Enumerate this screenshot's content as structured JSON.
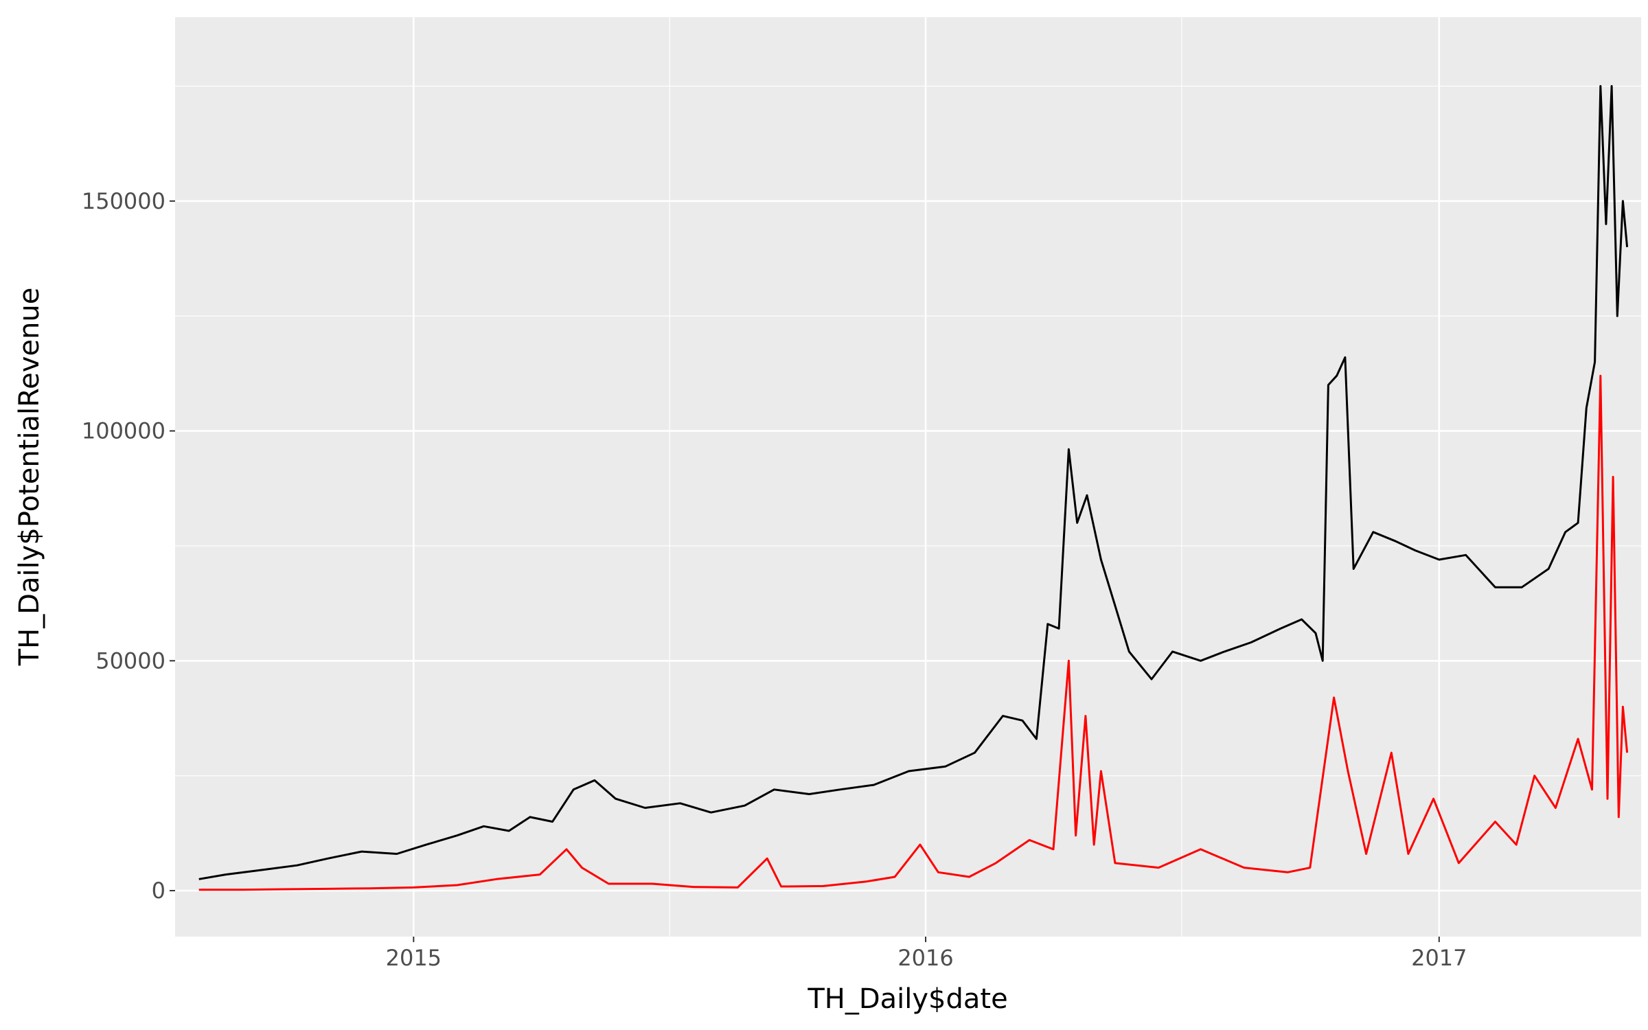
{
  "chart_data": {
    "type": "line",
    "title": "",
    "xlabel": "TH_Daily$date",
    "ylabel": "TH_Daily$PotentialRevenue",
    "x_range": [
      "2014-07-15",
      "2017-05-25"
    ],
    "ylim": [
      -10000,
      190000
    ],
    "x_ticks": [
      {
        "date": "2015-01-01",
        "label": "2015"
      },
      {
        "date": "2016-01-01",
        "label": "2016"
      },
      {
        "date": "2017-01-01",
        "label": "2017"
      }
    ],
    "y_ticks": [
      {
        "value": 0,
        "label": "0"
      },
      {
        "value": 50000,
        "label": "50000"
      },
      {
        "value": 100000,
        "label": "100000"
      },
      {
        "value": 150000,
        "label": "150000"
      }
    ],
    "grid": true,
    "background": "#ebebeb",
    "series": [
      {
        "color": "#000000",
        "points": [
          [
            "2014-08-01",
            2500
          ],
          [
            "2014-08-20",
            3500
          ],
          [
            "2014-09-15",
            4500
          ],
          [
            "2014-10-10",
            5500
          ],
          [
            "2014-11-01",
            7000
          ],
          [
            "2014-11-25",
            8500
          ],
          [
            "2014-12-20",
            8000
          ],
          [
            "2015-01-10",
            10000
          ],
          [
            "2015-02-01",
            12000
          ],
          [
            "2015-02-20",
            14000
          ],
          [
            "2015-03-10",
            13000
          ],
          [
            "2015-03-25",
            16000
          ],
          [
            "2015-04-10",
            15000
          ],
          [
            "2015-04-25",
            22000
          ],
          [
            "2015-05-10",
            24000
          ],
          [
            "2015-05-25",
            20000
          ],
          [
            "2015-06-15",
            18000
          ],
          [
            "2015-07-10",
            19000
          ],
          [
            "2015-08-01",
            17000
          ],
          [
            "2015-08-25",
            18500
          ],
          [
            "2015-09-15",
            22000
          ],
          [
            "2015-10-10",
            21000
          ],
          [
            "2015-11-01",
            22000
          ],
          [
            "2015-11-25",
            23000
          ],
          [
            "2015-12-20",
            26000
          ],
          [
            "2016-01-15",
            27000
          ],
          [
            "2016-02-05",
            30000
          ],
          [
            "2016-02-25",
            38000
          ],
          [
            "2016-03-10",
            37000
          ],
          [
            "2016-03-20",
            33000
          ],
          [
            "2016-03-28",
            58000
          ],
          [
            "2016-04-05",
            57000
          ],
          [
            "2016-04-12",
            96000
          ],
          [
            "2016-04-18",
            80000
          ],
          [
            "2016-04-25",
            86000
          ],
          [
            "2016-05-05",
            72000
          ],
          [
            "2016-05-15",
            62000
          ],
          [
            "2016-05-25",
            52000
          ],
          [
            "2016-06-10",
            46000
          ],
          [
            "2016-06-25",
            52000
          ],
          [
            "2016-07-15",
            50000
          ],
          [
            "2016-08-01",
            52000
          ],
          [
            "2016-08-20",
            54000
          ],
          [
            "2016-09-10",
            57000
          ],
          [
            "2016-09-25",
            59000
          ],
          [
            "2016-10-05",
            56000
          ],
          [
            "2016-10-10",
            50000
          ],
          [
            "2016-10-14",
            110000
          ],
          [
            "2016-10-20",
            112000
          ],
          [
            "2016-10-26",
            116000
          ],
          [
            "2016-11-01",
            70000
          ],
          [
            "2016-11-15",
            78000
          ],
          [
            "2016-12-01",
            76000
          ],
          [
            "2016-12-15",
            74000
          ],
          [
            "2017-01-01",
            72000
          ],
          [
            "2017-01-20",
            73000
          ],
          [
            "2017-02-10",
            66000
          ],
          [
            "2017-03-01",
            66000
          ],
          [
            "2017-03-20",
            70000
          ],
          [
            "2017-04-01",
            78000
          ],
          [
            "2017-04-10",
            80000
          ],
          [
            "2017-04-16",
            105000
          ],
          [
            "2017-04-22",
            115000
          ],
          [
            "2017-04-26",
            175000
          ],
          [
            "2017-04-30",
            145000
          ],
          [
            "2017-05-04",
            175000
          ],
          [
            "2017-05-08",
            125000
          ],
          [
            "2017-05-12",
            150000
          ],
          [
            "2017-05-15",
            140000
          ]
        ]
      },
      {
        "color": "#ff0000",
        "points": [
          [
            "2014-08-01",
            200
          ],
          [
            "2014-09-01",
            200
          ],
          [
            "2014-10-01",
            300
          ],
          [
            "2014-11-01",
            400
          ],
          [
            "2014-12-01",
            500
          ],
          [
            "2015-01-01",
            700
          ],
          [
            "2015-02-01",
            1200
          ],
          [
            "2015-03-01",
            2500
          ],
          [
            "2015-04-01",
            3500
          ],
          [
            "2015-04-20",
            9000
          ],
          [
            "2015-05-01",
            5000
          ],
          [
            "2015-05-20",
            1500
          ],
          [
            "2015-06-20",
            1500
          ],
          [
            "2015-07-20",
            800
          ],
          [
            "2015-08-20",
            700
          ],
          [
            "2015-09-10",
            7000
          ],
          [
            "2015-09-20",
            900
          ],
          [
            "2015-10-20",
            1000
          ],
          [
            "2015-11-20",
            2000
          ],
          [
            "2015-12-10",
            3000
          ],
          [
            "2015-12-28",
            10000
          ],
          [
            "2016-01-10",
            4000
          ],
          [
            "2016-02-01",
            3000
          ],
          [
            "2016-02-20",
            6000
          ],
          [
            "2016-03-15",
            11000
          ],
          [
            "2016-04-01",
            9000
          ],
          [
            "2016-04-12",
            50000
          ],
          [
            "2016-04-17",
            12000
          ],
          [
            "2016-04-24",
            38000
          ],
          [
            "2016-04-30",
            10000
          ],
          [
            "2016-05-05",
            26000
          ],
          [
            "2016-05-15",
            6000
          ],
          [
            "2016-06-15",
            5000
          ],
          [
            "2016-07-15",
            9000
          ],
          [
            "2016-08-15",
            5000
          ],
          [
            "2016-09-15",
            4000
          ],
          [
            "2016-10-01",
            5000
          ],
          [
            "2016-10-18",
            42000
          ],
          [
            "2016-10-28",
            26000
          ],
          [
            "2016-11-10",
            8000
          ],
          [
            "2016-11-28",
            30000
          ],
          [
            "2016-12-10",
            8000
          ],
          [
            "2016-12-28",
            20000
          ],
          [
            "2017-01-15",
            6000
          ],
          [
            "2017-02-10",
            15000
          ],
          [
            "2017-02-25",
            10000
          ],
          [
            "2017-03-10",
            25000
          ],
          [
            "2017-03-25",
            18000
          ],
          [
            "2017-04-10",
            33000
          ],
          [
            "2017-04-20",
            22000
          ],
          [
            "2017-04-26",
            112000
          ],
          [
            "2017-05-01",
            20000
          ],
          [
            "2017-05-05",
            90000
          ],
          [
            "2017-05-09",
            16000
          ],
          [
            "2017-05-12",
            40000
          ],
          [
            "2017-05-15",
            30000
          ]
        ]
      }
    ]
  }
}
